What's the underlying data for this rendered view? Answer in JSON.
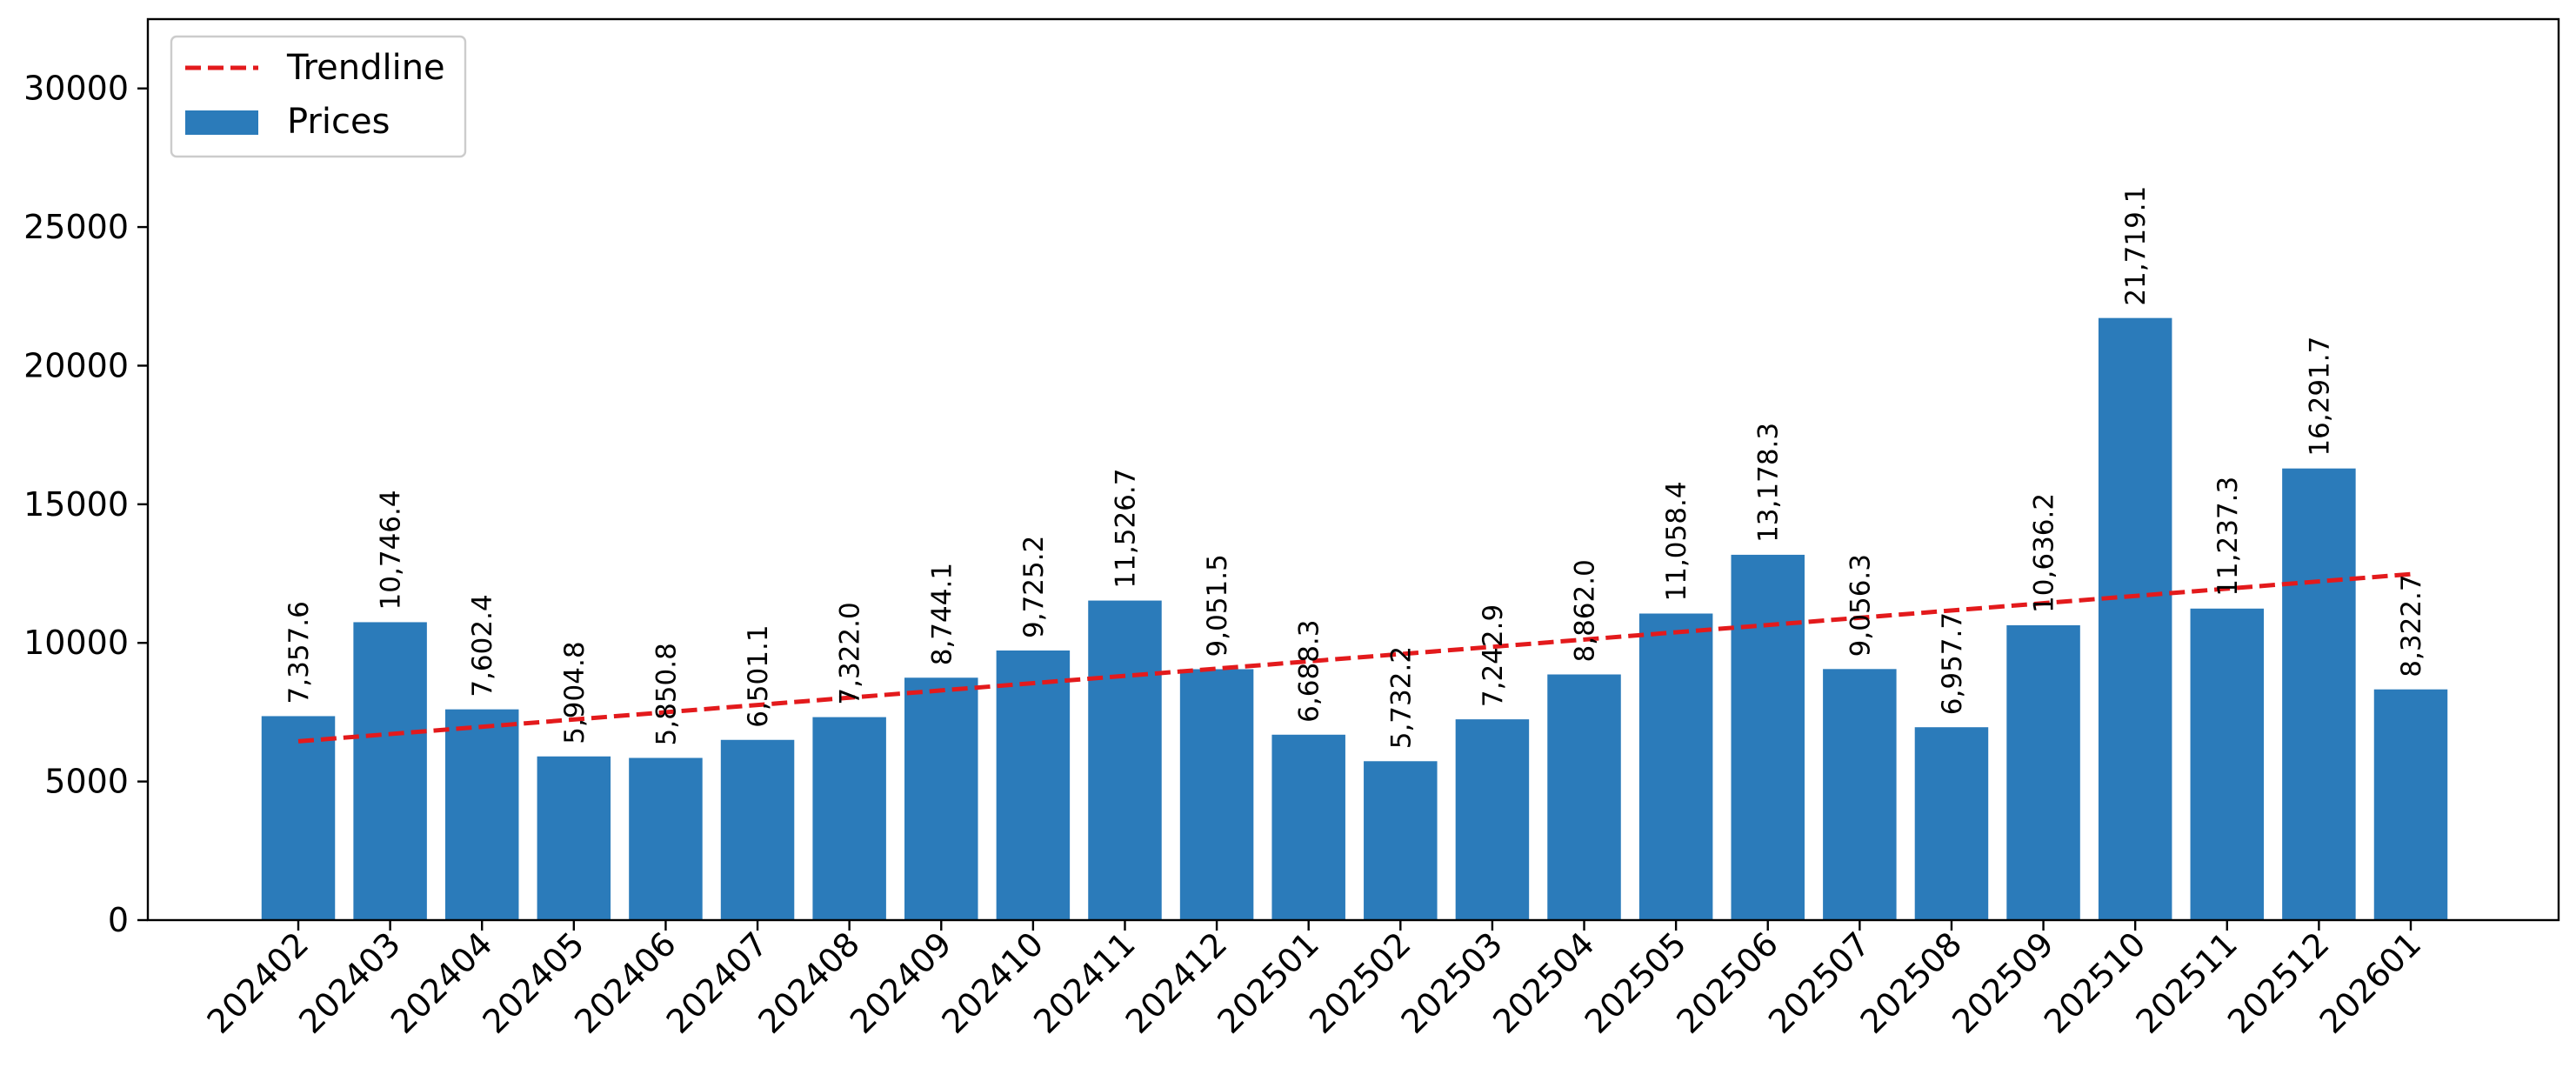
{
  "chart_data": {
    "type": "bar",
    "title": "",
    "xlabel": "",
    "ylabel": "",
    "categories": [
      "202402",
      "202403",
      "202404",
      "202405",
      "202406",
      "202407",
      "202408",
      "202409",
      "202410",
      "202411",
      "202412",
      "202501",
      "202502",
      "202503",
      "202504",
      "202505",
      "202506",
      "202507",
      "202508",
      "202509",
      "202510",
      "202511",
      "202512",
      "202601"
    ],
    "series": [
      {
        "name": "Prices",
        "color": "#2b7bba",
        "values": [
          7357.6,
          10746.4,
          7602.4,
          5904.8,
          5850.8,
          6501.1,
          7322.0,
          8744.1,
          9725.2,
          11526.7,
          9051.5,
          6688.3,
          5732.2,
          7242.9,
          8862.0,
          11058.4,
          13178.3,
          9056.3,
          6957.7,
          10636.2,
          21719.1,
          11237.3,
          16291.7,
          8322.7
        ],
        "labels": [
          "7,357.6",
          "10,746.4",
          "7,602.4",
          "5,904.8",
          "5,850.8",
          "6,501.1",
          "7,322.0",
          "8,744.1",
          "9,725.2",
          "11,526.7",
          "9,051.5",
          "6,688.3",
          "5,732.2",
          "7,242.9",
          "8,862.0",
          "11,058.4",
          "13,178.3",
          "9,056.3",
          "6,957.7",
          "10,636.2",
          "21,719.1",
          "11,237.3",
          "16,291.7",
          "8,322.7"
        ]
      }
    ],
    "trendline": {
      "name": "Trendline",
      "color": "#e31a1c",
      "style": "dashed",
      "start": 6450,
      "end": 12480
    },
    "ylim": [
      0,
      32500
    ],
    "yticks": [
      "0",
      "5000",
      "10000",
      "15000",
      "20000",
      "25000",
      "30000"
    ],
    "xtick_rotation": 45,
    "grid": false,
    "legend": {
      "position": "top-left",
      "entries": [
        "Trendline",
        "Prices"
      ]
    }
  }
}
